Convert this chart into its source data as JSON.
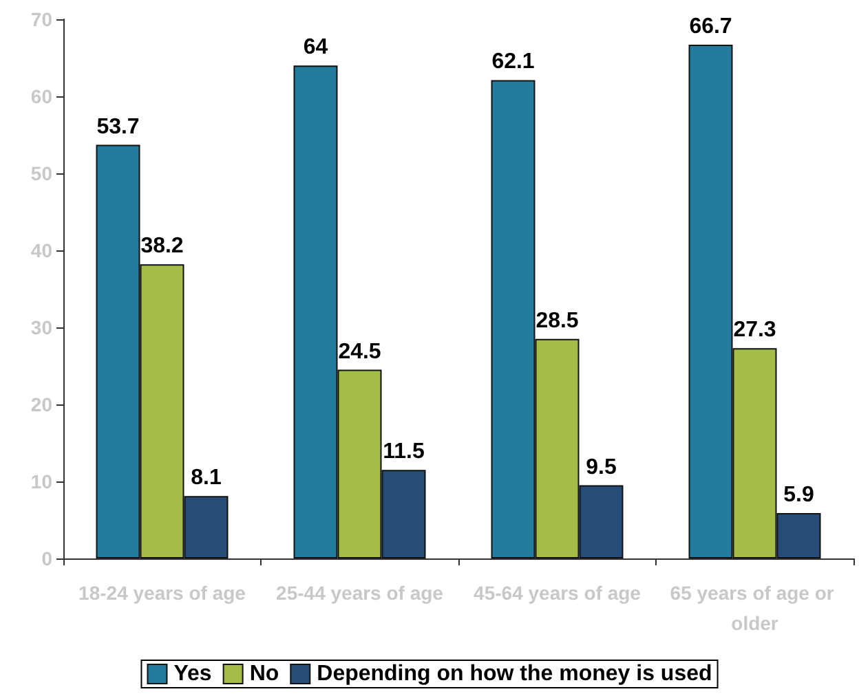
{
  "chart_data": {
    "type": "bar",
    "categories": [
      "18-24 years of age",
      "25-44 years of age",
      "45-64 years of age",
      "65 years of age or older"
    ],
    "series": [
      {
        "name": "Yes",
        "color": "#217c9e",
        "values": [
          53.7,
          64,
          62.1,
          66.7
        ]
      },
      {
        "name": "No",
        "color": "#a3bd48",
        "values": [
          38.2,
          24.5,
          28.5,
          27.3
        ]
      },
      {
        "name": "Depending on how the money is used",
        "color": "#264d77",
        "values": [
          8.1,
          11.5,
          9.5,
          5.9
        ]
      }
    ],
    "ylim": [
      0,
      70
    ],
    "yticks": [
      0,
      10,
      20,
      30,
      40,
      50,
      60,
      70
    ],
    "grid": false,
    "legend": "bottom",
    "data_labels": true
  }
}
